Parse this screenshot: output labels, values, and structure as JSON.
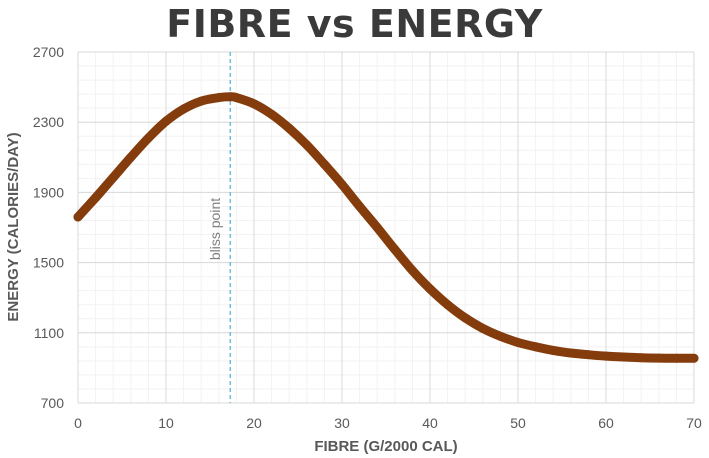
{
  "chart_data": {
    "type": "line",
    "title": "FIBRE vs ENERGY",
    "xlabel": "FIBRE (G/2000 CAL)",
    "ylabel": "ENERGY (CALORIES/DAY)",
    "xlim": [
      0,
      70
    ],
    "ylim": [
      700,
      2700
    ],
    "xticks": [
      0,
      10,
      20,
      30,
      40,
      50,
      60,
      70
    ],
    "yticks": [
      700,
      1100,
      1500,
      1900,
      2300,
      2700
    ],
    "xtick_labels": [
      "0",
      "10",
      "20",
      "30",
      "40",
      "50",
      "60",
      "70"
    ],
    "ytick_labels": [
      "700",
      "1100",
      "1500",
      "1900",
      "2300",
      "2700"
    ],
    "grid": true,
    "series": [
      {
        "name": "Energy",
        "color": "#843c0c",
        "x": [
          0,
          2,
          4,
          6,
          8,
          10,
          12,
          14,
          16,
          17.3,
          18,
          20,
          22,
          24,
          26,
          28,
          30,
          32,
          34,
          36,
          38,
          40,
          42,
          44,
          46,
          48,
          50,
          52,
          54,
          56,
          58,
          60,
          62,
          64,
          66,
          68,
          70
        ],
        "values": [
          1760,
          1870,
          1985,
          2100,
          2210,
          2305,
          2375,
          2420,
          2440,
          2445,
          2440,
          2405,
          2345,
          2265,
          2170,
          2060,
          1945,
          1820,
          1700,
          1575,
          1455,
          1350,
          1260,
          1185,
          1125,
          1080,
          1045,
          1020,
          1000,
          985,
          975,
          967,
          962,
          958,
          956,
          955,
          955
        ]
      }
    ],
    "annotations": [
      {
        "type": "vline",
        "x": 17.3,
        "label": "bliss point",
        "color": "#5bb8d8"
      }
    ]
  }
}
